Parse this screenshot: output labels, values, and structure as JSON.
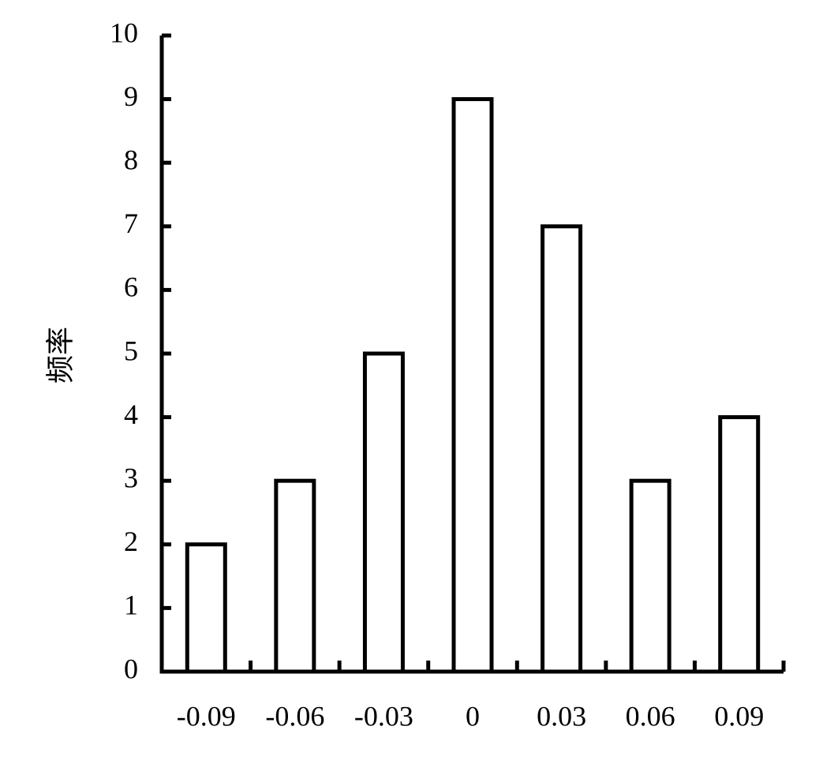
{
  "chart_data": {
    "type": "bar",
    "y_label": "频率",
    "categories": [
      "-0.09",
      "-0.06",
      "-0.03",
      "0",
      "0.03",
      "0.06",
      "0.09"
    ],
    "values": [
      2,
      3,
      5,
      9,
      7,
      3,
      4
    ],
    "color": "#ffffff",
    "edge_color": "#000000",
    "ylim": [
      0,
      10
    ],
    "yticks": [
      0,
      1,
      2,
      3,
      4,
      5,
      6,
      7,
      8,
      9,
      10
    ],
    "grid": false
  }
}
